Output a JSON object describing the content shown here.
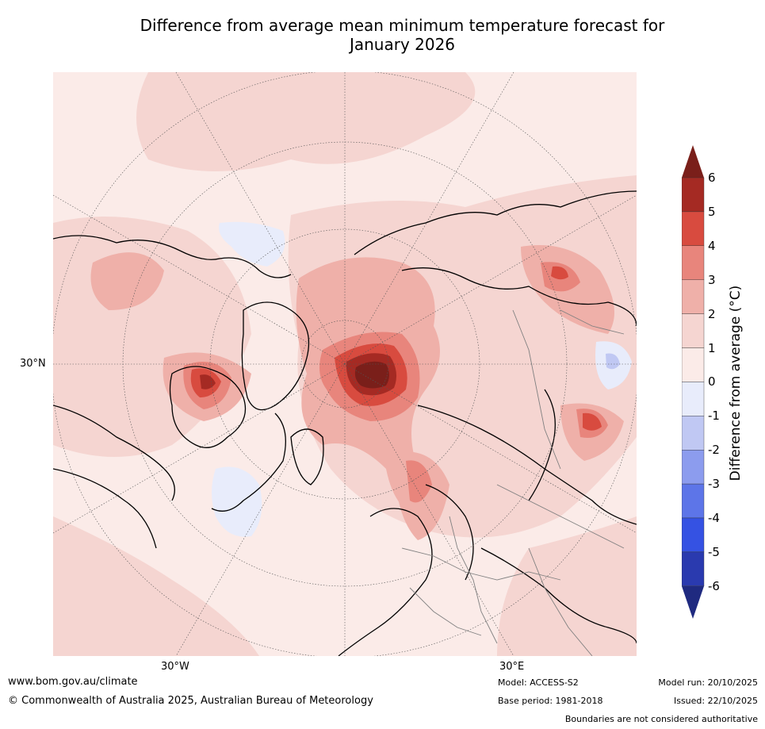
{
  "title_line1": "Difference from average mean minimum temperature forecast for",
  "title_line2": "January 2026",
  "map": {
    "labels": {
      "lat_30n": "30°N",
      "lon_30w": "30°W",
      "lon_30e": "30°E"
    },
    "hotspots": [
      {
        "name": "arctic-warm-core",
        "anomaly": 6
      },
      {
        "name": "greenland-warm",
        "anomaly": 4
      },
      {
        "name": "east-asia-warm",
        "anomaly": 4
      },
      {
        "name": "siberia-warm",
        "anomaly": 4
      },
      {
        "name": "atlantic-cool",
        "anomaly": -1
      },
      {
        "name": "central-asia-cool",
        "anomaly": -2
      }
    ]
  },
  "colorbar": {
    "title": "Difference from average (°C)",
    "ticks": [
      "6",
      "5",
      "4",
      "3",
      "2",
      "1",
      "0",
      "-1",
      "-2",
      "-3",
      "-4",
      "-5",
      "-6"
    ],
    "colors": [
      "#a52a23",
      "#d84b3f",
      "#e8857c",
      "#efb0a9",
      "#f5d5d1",
      "#fbebe8",
      "#e8ecfb",
      "#c0c8f3",
      "#8c9cee",
      "#5d75e8",
      "#3552e3",
      "#2a3aaf"
    ],
    "top_arrow_color": "#7a1f1a",
    "bottom_arrow_color": "#1f2a80"
  },
  "footer": {
    "website": "www.bom.gov.au/climate",
    "copyright": "© Commonwealth of Australia 2025, Australian Bureau of Meteorology",
    "model": "Model: ACCESS-S2",
    "base_period": "Base period: 1981-2018",
    "model_run": "Model run: 20/10/2025",
    "issued": "Issued: 22/10/2025",
    "disclaimer": "Boundaries are not considered authoritative"
  }
}
